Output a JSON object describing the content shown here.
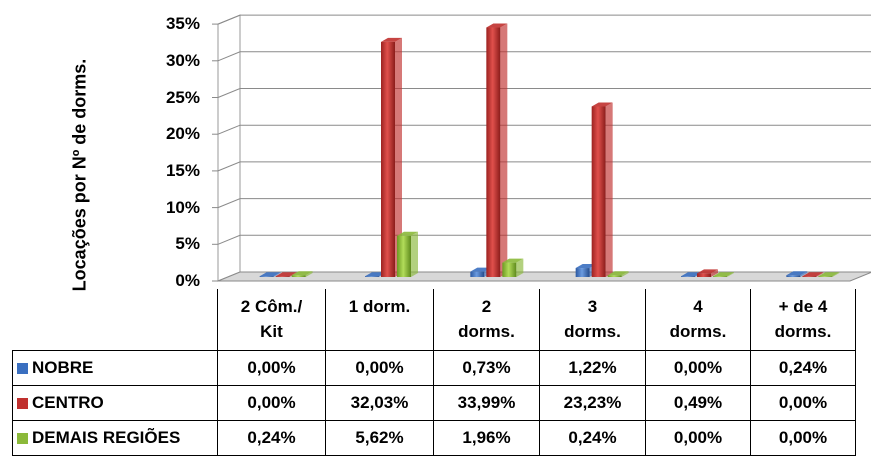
{
  "chart_data": {
    "type": "bar",
    "ylabel": "Locações por Nº de dorms.",
    "ylim": [
      0,
      35
    ],
    "yticks": [
      "0%",
      "5%",
      "10%",
      "15%",
      "20%",
      "25%",
      "30%",
      "35%"
    ],
    "grid": true,
    "legend": "table-left",
    "categories": [
      "2 Côm./ Kit",
      "1 dorm.",
      "2 dorms.",
      "3 dorms.",
      "4 dorms.",
      "+ de 4 dorms."
    ],
    "series": [
      {
        "name": "NOBRE",
        "color": "#3a6fc0",
        "values": [
          0.0,
          0.0,
          0.73,
          1.22,
          0.0,
          0.24
        ],
        "labels": [
          "0,00%",
          "0,00%",
          "0,73%",
          "1,22%",
          "0,00%",
          "0,24%"
        ]
      },
      {
        "name": "CENTRO",
        "color": "#c0302e",
        "values": [
          0.0,
          32.03,
          33.99,
          23.23,
          0.49,
          0.0
        ],
        "labels": [
          "0,00%",
          "32,03%",
          "33,99%",
          "23,23%",
          "0,49%",
          "0,00%"
        ]
      },
      {
        "name": "DEMAIS REGIÕES",
        "color": "#8bb93a",
        "values": [
          0.24,
          5.62,
          1.96,
          0.24,
          0.0,
          0.0
        ],
        "labels": [
          "0,24%",
          "5,62%",
          "1,96%",
          "0,24%",
          "0,00%",
          "0,00%"
        ]
      }
    ]
  },
  "table": {
    "headers": [
      [
        "2 Côm./",
        "Kit"
      ],
      [
        "1 dorm.",
        ""
      ],
      [
        "2",
        "dorms."
      ],
      [
        "3",
        "dorms."
      ],
      [
        "4",
        "dorms."
      ],
      [
        "+ de 4",
        "dorms."
      ]
    ]
  }
}
